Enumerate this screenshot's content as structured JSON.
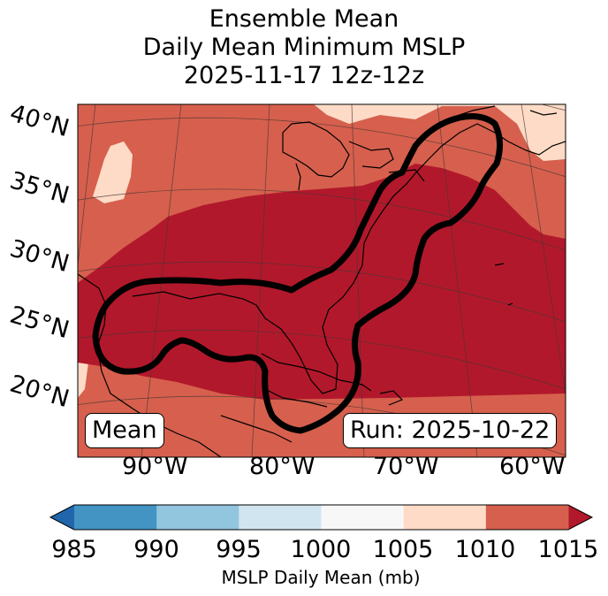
{
  "title": {
    "line1": "Ensemble Mean",
    "line2": "Daily Mean Minimum MSLP",
    "line3": "2025-11-17 12z-12z"
  },
  "lat_labels": [
    "40°N",
    "35°N",
    "30°N",
    "25°N",
    "20°N"
  ],
  "lon_labels": [
    "90°W",
    "80°W",
    "70°W",
    "60°W"
  ],
  "badges": {
    "mean": "Mean",
    "run": "Run: 2025-10-22"
  },
  "colorbar": {
    "label": "MSLP Daily Mean (mb)",
    "ticks": [
      "985",
      "990",
      "995",
      "1000",
      "1005",
      "1010",
      "1015"
    ],
    "bins": [
      {
        "range": "985-990",
        "color": "#4393c3"
      },
      {
        "range": "990-995",
        "color": "#92c5de"
      },
      {
        "range": "995-1000",
        "color": "#d1e5f0"
      },
      {
        "range": "1000-1005",
        "color": "#f7f7f7"
      },
      {
        "range": "1005-1010",
        "color": "#fddbc7"
      },
      {
        "range": "1010-1015",
        "color": "#d6604d"
      }
    ],
    "under_color": "#2166ac",
    "over_color": "#b2182b"
  },
  "field_colors": {
    "low_region": "#b2182b",
    "background": "#d6604d",
    "high_patch": "#fddbc7",
    "contour": "#000000"
  }
}
